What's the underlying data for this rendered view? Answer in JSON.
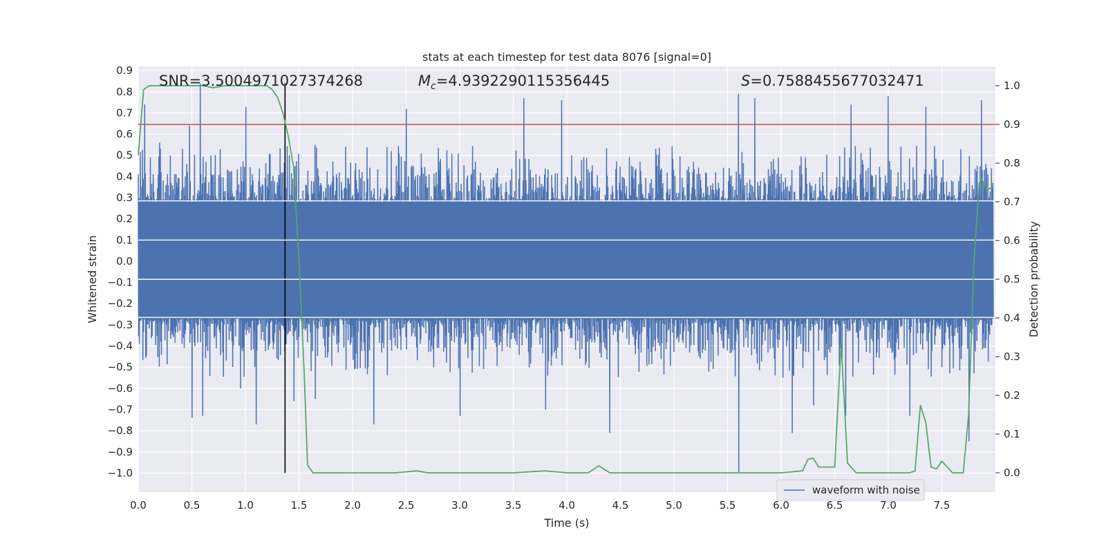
{
  "chart_data": {
    "type": "line",
    "title": "stats at each timestep for test data 8076 [signal=0]",
    "xlabel": "Time (s)",
    "ylabel": "Whitened strain",
    "y2label": "Detection probability",
    "xlim": [
      0.0,
      8.0
    ],
    "ylim": [
      -1.09,
      0.92
    ],
    "y2lim": [
      -0.05,
      1.05
    ],
    "xticks": [
      "0.0",
      "0.5",
      "1.0",
      "1.5",
      "2.0",
      "2.5",
      "3.0",
      "3.5",
      "4.0",
      "4.5",
      "5.0",
      "5.5",
      "6.0",
      "6.5",
      "7.0",
      "7.5"
    ],
    "xtick_values": [
      0.0,
      0.5,
      1.0,
      1.5,
      2.0,
      2.5,
      3.0,
      3.5,
      4.0,
      4.5,
      5.0,
      5.5,
      6.0,
      6.5,
      7.0,
      7.5
    ],
    "yticks": [
      "0.9",
      "0.8",
      "0.7",
      "0.6",
      "0.5",
      "0.4",
      "0.3",
      "0.2",
      "0.1",
      "0.0",
      "−0.1",
      "−0.2",
      "−0.3",
      "−0.4",
      "−0.5",
      "−0.6",
      "−0.7",
      "−0.8",
      "−0.9",
      "−1.0"
    ],
    "ytick_values": [
      0.9,
      0.8,
      0.7,
      0.6,
      0.5,
      0.4,
      0.3,
      0.2,
      0.1,
      0.0,
      -0.1,
      -0.2,
      -0.3,
      -0.4,
      -0.5,
      -0.6,
      -0.7,
      -0.8,
      -0.9,
      -1.0
    ],
    "y2ticks": [
      "1.0",
      "0.9",
      "0.8",
      "0.7",
      "0.6",
      "0.5",
      "0.4",
      "0.3",
      "0.2",
      "0.1",
      "0.0"
    ],
    "y2tick_values": [
      1.0,
      0.9,
      0.8,
      0.7,
      0.6,
      0.5,
      0.4,
      0.3,
      0.2,
      0.1,
      0.0
    ],
    "annotations": {
      "snr": "SNR=3.5004971027374268",
      "mc_symbol": "M",
      "mc_sub": "c",
      "mc_value": "=4.9392290115356445",
      "s_symbol": "S",
      "s_value": "=0.7588455677032471"
    },
    "threshold": 0.9,
    "marker_time": 1.37,
    "legend": [
      "waveform with noise"
    ],
    "legend_position": "lower right",
    "series": [
      {
        "name": "waveform with noise",
        "color": "#4c72b0",
        "envelope": {
          "t_start": 0.0,
          "t_end": 7.98,
          "core_max": 0.28,
          "core_min": -0.27,
          "typical_peak": 0.5,
          "typical_trough": -0.5
        },
        "spikes": [
          [
            0.06,
            0.74
          ],
          [
            0.2,
            0.56
          ],
          [
            0.3,
            0.5
          ],
          [
            0.48,
            0.64
          ],
          [
            0.5,
            -0.74
          ],
          [
            0.58,
            0.84
          ],
          [
            0.6,
            -0.73
          ],
          [
            0.95,
            -0.6
          ],
          [
            1.0,
            0.73
          ],
          [
            1.1,
            -0.77
          ],
          [
            1.45,
            -0.66
          ],
          [
            1.65,
            -0.65
          ],
          [
            2.2,
            -0.77
          ],
          [
            2.5,
            0.72
          ],
          [
            3.0,
            -0.73
          ],
          [
            3.6,
            0.77
          ],
          [
            3.8,
            -0.7
          ],
          [
            3.95,
            0.76
          ],
          [
            4.4,
            -0.81
          ],
          [
            5.6,
            0.79
          ],
          [
            5.6,
            -1.0
          ],
          [
            5.75,
            0.77
          ],
          [
            6.1,
            -0.81
          ],
          [
            6.3,
            -0.68
          ],
          [
            6.6,
            -0.73
          ],
          [
            6.65,
            0.74
          ],
          [
            7.0,
            0.78
          ],
          [
            7.2,
            -0.73
          ],
          [
            7.35,
            0.73
          ],
          [
            7.75,
            -0.85
          ],
          [
            7.87,
            0.76
          ]
        ]
      },
      {
        "name": "detection probability",
        "color": "#55a868",
        "axis": "right",
        "x": [
          0.0,
          0.05,
          0.1,
          0.2,
          0.4,
          0.6,
          0.7,
          0.8,
          1.0,
          1.2,
          1.25,
          1.3,
          1.35,
          1.4,
          1.45,
          1.5,
          1.55,
          1.58,
          1.63,
          1.7,
          2.0,
          2.4,
          2.6,
          2.7,
          3.0,
          3.5,
          3.8,
          4.0,
          4.2,
          4.3,
          4.4,
          4.5,
          5.0,
          5.5,
          6.0,
          6.2,
          6.25,
          6.3,
          6.35,
          6.5,
          6.56,
          6.62,
          6.7,
          6.8,
          7.0,
          7.2,
          7.25,
          7.3,
          7.35,
          7.4,
          7.45,
          7.5,
          7.6,
          7.7,
          7.75,
          7.8,
          7.85,
          7.87,
          7.92,
          7.98
        ],
        "y": [
          0.82,
          0.99,
          1.0,
          1.0,
          1.0,
          1.0,
          0.995,
          1.0,
          1.0,
          1.0,
          0.99,
          0.97,
          0.93,
          0.87,
          0.79,
          0.55,
          0.25,
          0.02,
          0.0,
          0.0,
          0.0,
          0.0,
          0.005,
          0.0,
          0.0,
          0.0,
          0.005,
          0.0,
          0.0,
          0.018,
          0.0,
          0.0,
          0.0,
          0.0,
          0.0,
          0.005,
          0.035,
          0.038,
          0.015,
          0.015,
          0.335,
          0.025,
          0.0,
          0.0,
          0.0,
          0.0,
          0.005,
          0.175,
          0.13,
          0.015,
          0.01,
          0.03,
          0.0,
          0.0,
          0.15,
          0.55,
          0.75,
          0.76,
          0.73,
          0.74
        ]
      }
    ]
  }
}
